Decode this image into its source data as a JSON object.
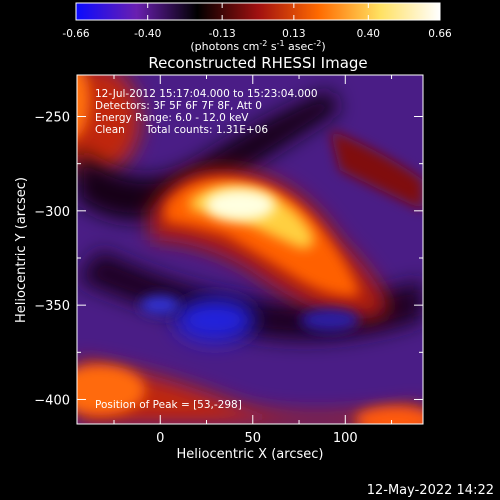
{
  "chart_data": {
    "type": "heatmap",
    "title": "Reconstructed RHESSI Image",
    "xlabel": "Heliocentric X (arcsec)",
    "ylabel": "Heliocentric Y (arcsec)",
    "xlim": [
      -45,
      142
    ],
    "ylim": [
      -413,
      -228
    ],
    "x_ticks": [
      0,
      50,
      100
    ],
    "y_ticks": [
      -250,
      -300,
      -350,
      -400
    ],
    "colorbar": {
      "min": -0.66,
      "max": 0.66,
      "ticks": [
        "-0.66",
        "-0.40",
        "-0.13",
        "0.13",
        "0.40",
        "0.66"
      ],
      "label_main": "(photons cm",
      "label_exp1": "-2",
      "label_mid": " s",
      "label_exp2": "-1",
      "label_end": " asec",
      "label_exp3": "-2",
      "label_close": ")",
      "stops": [
        "#0a0aff",
        "#6a1fb0",
        "#000000",
        "#a01010",
        "#ff6a00",
        "#ffe060",
        "#ffffff"
      ]
    },
    "annotations": {
      "date_range": "12-Jul-2012 15:17:04.000 to 15:23:04.000",
      "detectors": "Detectors: 3F 5F 6F 7F 8F, Att 0",
      "energy": "Energy Range: 6.0 - 12.0 keV",
      "clean_label": "Clean",
      "total_counts": "Total counts: 1.31E+06",
      "peak": "Position of Peak = [53,-298]"
    },
    "peak": {
      "x": 53,
      "y": -298
    }
  },
  "footer": {
    "timestamp": "12-May-2022 14:22"
  }
}
